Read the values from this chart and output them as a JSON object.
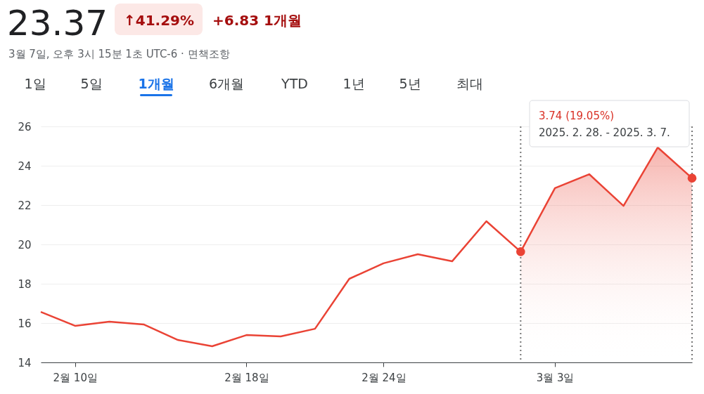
{
  "chart_data": {
    "type": "line",
    "title": "23.37",
    "subtitle": "3월 7일, 오후 3시 15분 1초 UTC-6 · 면책조항",
    "annotations": [
      "↑41.29%",
      "+6.83 1개월",
      "1일",
      "5일",
      "1개월",
      "6개월",
      "YTD",
      "1년",
      "5년",
      "최대",
      "3.74 (19.05%)",
      "2025. 2. 28. - 2025. 3. 7."
    ],
    "categories": [
      null,
      "2월 10일",
      null,
      null,
      null,
      null,
      "2월 18일",
      null,
      null,
      null,
      "2월 24일",
      null,
      null,
      null,
      null,
      "3월 3일",
      null,
      null,
      null,
      null
    ],
    "series": [
      {
        "color": "#ea4335",
        "values": [
          16.57,
          15.86,
          16.07,
          15.93,
          15.14,
          14.82,
          15.39,
          15.32,
          15.71,
          18.25,
          19.04,
          19.5,
          19.14,
          21.18,
          19.63,
          22.86,
          23.57,
          21.96,
          24.93,
          23.37
        ]
      },
      {
        "type": "area",
        "color": "#ea4335",
        "values": [
          null,
          null,
          null,
          null,
          null,
          null,
          null,
          null,
          null,
          null,
          null,
          null,
          null,
          null,
          19.63,
          22.86,
          23.57,
          21.96,
          24.93,
          23.37
        ]
      },
      {
        "type": "scatter",
        "color": "#ea4335",
        "marker": "circle",
        "values": [
          null,
          null,
          null,
          null,
          null,
          null,
          null,
          null,
          null,
          null,
          null,
          null,
          null,
          null,
          19.63,
          null,
          null,
          null,
          null,
          23.37
        ]
      }
    ],
    "ylim": [
      14,
      26
    ],
    "yticks": [
      14,
      16,
      18,
      20,
      22,
      24,
      26
    ],
    "grid": "y"
  }
}
